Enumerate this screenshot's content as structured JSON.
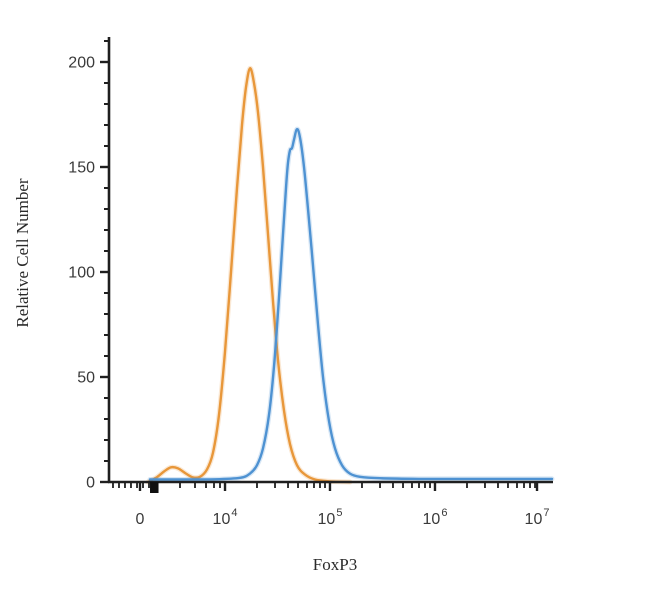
{
  "page": {
    "background": "#ffffff"
  },
  "chart_data": {
    "type": "line",
    "subtype": "flow-cytometry-histogram",
    "title": "",
    "xlabel": "FoxP3",
    "ylabel": "Relative Cell Number",
    "x_scale": "biexponential-log",
    "x_axis_range_note": "0 then 10^4 to 10^7",
    "ylim": [
      0,
      210
    ],
    "grid": false,
    "legend": "none",
    "axis_color": "#1f1f1f",
    "yticks": {
      "major": [
        {
          "label": "200",
          "value": 200
        },
        {
          "label": "150",
          "value": 150
        },
        {
          "label": "100",
          "value": 100
        },
        {
          "label": "50",
          "value": 50
        },
        {
          "label": "0",
          "value": 0
        }
      ],
      "minor_step": 10,
      "minor_max": 210
    },
    "xticks": {
      "major": [
        {
          "label": "0",
          "exp": "",
          "t": 0.0698
        },
        {
          "label": "10",
          "exp": "4",
          "t": 0.2613
        },
        {
          "label": "10",
          "exp": "5",
          "t": 0.4977
        },
        {
          "label": "10",
          "exp": "6",
          "t": 0.7342
        },
        {
          "label": "10",
          "exp": "7",
          "t": 0.964
        }
      ],
      "minor_t": [
        0.009,
        0.0225,
        0.036,
        0.0495,
        0.0631,
        0.0766,
        0.0901,
        0.1599,
        0.1937,
        0.2185,
        0.2365,
        0.25,
        0.3333,
        0.3739,
        0.4032,
        0.4257,
        0.4459,
        0.4617,
        0.4752,
        0.4865,
        0.5698,
        0.6104,
        0.6396,
        0.6622,
        0.6824,
        0.6982,
        0.7117,
        0.723,
        0.8063,
        0.8468,
        0.8761,
        0.8986,
        0.9189,
        0.9347,
        0.9482,
        0.9595
      ],
      "bold_marker_t": 0.1014
    },
    "series": [
      {
        "name": "orange-curve",
        "color": "#E8973A",
        "peak_count": 197,
        "peak_x_value": "~1.7×10^4",
        "small_bump": {
          "x_t": 0.14,
          "count": 7
        },
        "trace_t_count": [
          [
            0.0878,
            0
          ],
          [
            0.1059,
            2
          ],
          [
            0.1239,
            5
          ],
          [
            0.1396,
            7
          ],
          [
            0.1554,
            6.5
          ],
          [
            0.1734,
            4
          ],
          [
            0.1892,
            2.2
          ],
          [
            0.205,
            2.5
          ],
          [
            0.2207,
            6
          ],
          [
            0.2342,
            14
          ],
          [
            0.2477,
            32
          ],
          [
            0.2613,
            62
          ],
          [
            0.2748,
            100
          ],
          [
            0.2883,
            140
          ],
          [
            0.2995,
            170
          ],
          [
            0.3086,
            188
          ],
          [
            0.3176,
            197
          ],
          [
            0.3266,
            190
          ],
          [
            0.3356,
            176
          ],
          [
            0.3468,
            150
          ],
          [
            0.3581,
            118
          ],
          [
            0.3694,
            86
          ],
          [
            0.3806,
            58
          ],
          [
            0.3941,
            34
          ],
          [
            0.4077,
            18
          ],
          [
            0.4234,
            8
          ],
          [
            0.4414,
            3.5
          ],
          [
            0.4639,
            1.2
          ],
          [
            0.4977,
            0.3
          ],
          [
            0.5428,
            0
          ]
        ]
      },
      {
        "name": "blue-curve",
        "color": "#4E92D2",
        "peak_count": 168,
        "peak_x_value": "~5×10^4",
        "trace_t_count": [
          [
            0.0923,
            1.2
          ],
          [
            0.1599,
            1.2
          ],
          [
            0.2387,
            1.3
          ],
          [
            0.295,
            2
          ],
          [
            0.3176,
            4
          ],
          [
            0.3333,
            8
          ],
          [
            0.3468,
            16
          ],
          [
            0.3604,
            32
          ],
          [
            0.3716,
            55
          ],
          [
            0.3829,
            88
          ],
          [
            0.3919,
            118
          ],
          [
            0.3986,
            140
          ],
          [
            0.4032,
            152
          ],
          [
            0.4077,
            158
          ],
          [
            0.4122,
            159
          ],
          [
            0.4167,
            163
          ],
          [
            0.4234,
            168
          ],
          [
            0.4302,
            164
          ],
          [
            0.4392,
            150
          ],
          [
            0.4482,
            130
          ],
          [
            0.4595,
            103
          ],
          [
            0.4707,
            75
          ],
          [
            0.482,
            50
          ],
          [
            0.4955,
            29
          ],
          [
            0.509,
            16
          ],
          [
            0.5248,
            8
          ],
          [
            0.5428,
            4
          ],
          [
            0.5653,
            2.5
          ],
          [
            0.6104,
            1.8
          ],
          [
            0.7005,
            1.5
          ],
          [
            0.8356,
            1.5
          ],
          [
            0.9977,
            1.5
          ]
        ]
      }
    ]
  }
}
